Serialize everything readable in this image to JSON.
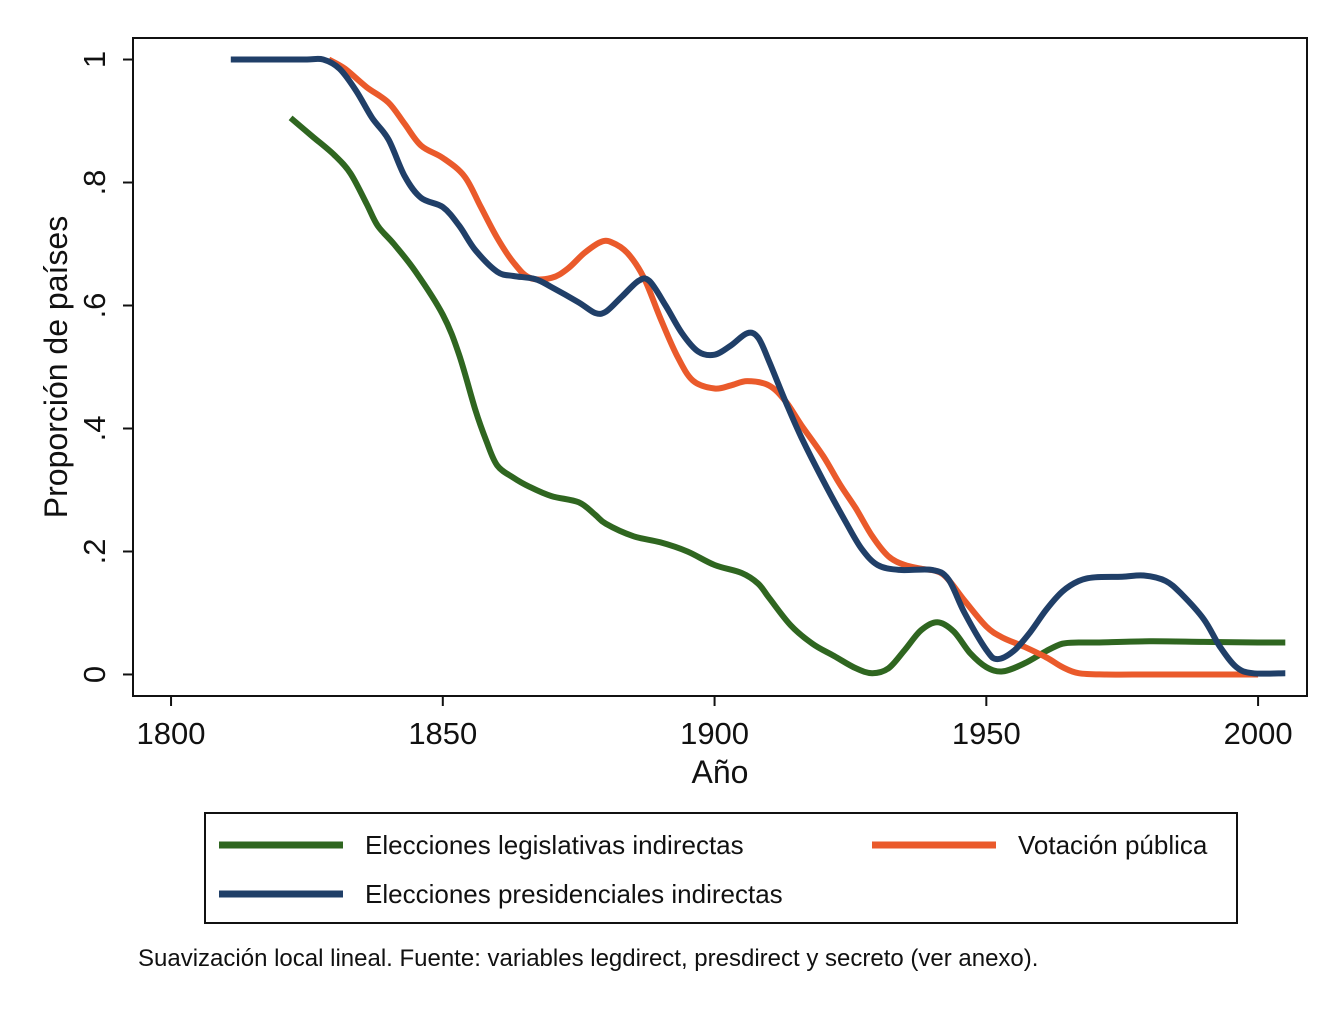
{
  "chart_data": {
    "type": "line",
    "title": "",
    "xlabel": "Año",
    "ylabel": "Proporción de países",
    "xlim": [
      1793,
      2009
    ],
    "ylim": [
      -0.035,
      1.035
    ],
    "x_ticks": [
      1800,
      1850,
      1900,
      1950,
      2000
    ],
    "x_tick_labels": [
      "1800",
      "1850",
      "1900",
      "1950",
      "2000"
    ],
    "y_ticks": [
      0,
      0.2,
      0.4,
      0.6,
      0.8,
      1
    ],
    "y_tick_labels": [
      "0",
      ".2",
      ".4",
      ".6",
      ".8",
      "1"
    ],
    "grid": false,
    "legend_position": "bottom",
    "note": "Suavización local lineal. Fuente: variables legdirect, presdirect y secreto (ver anexo).",
    "series": [
      {
        "name": "Elecciones legislativas indirectas",
        "color": "#2f6620",
        "points": [
          [
            1822,
            0.905
          ],
          [
            1826,
            0.875
          ],
          [
            1830,
            0.845
          ],
          [
            1833,
            0.815
          ],
          [
            1836,
            0.765
          ],
          [
            1838,
            0.73
          ],
          [
            1841,
            0.7
          ],
          [
            1845,
            0.655
          ],
          [
            1850,
            0.585
          ],
          [
            1853,
            0.52
          ],
          [
            1856,
            0.43
          ],
          [
            1858,
            0.38
          ],
          [
            1860,
            0.34
          ],
          [
            1863,
            0.32
          ],
          [
            1866,
            0.305
          ],
          [
            1870,
            0.29
          ],
          [
            1875,
            0.28
          ],
          [
            1878,
            0.26
          ],
          [
            1880,
            0.245
          ],
          [
            1885,
            0.225
          ],
          [
            1890,
            0.215
          ],
          [
            1895,
            0.2
          ],
          [
            1900,
            0.178
          ],
          [
            1905,
            0.165
          ],
          [
            1908,
            0.148
          ],
          [
            1910,
            0.125
          ],
          [
            1914,
            0.08
          ],
          [
            1918,
            0.05
          ],
          [
            1922,
            0.03
          ],
          [
            1926,
            0.01
          ],
          [
            1929,
            0.002
          ],
          [
            1932,
            0.01
          ],
          [
            1935,
            0.04
          ],
          [
            1938,
            0.072
          ],
          [
            1941,
            0.085
          ],
          [
            1944,
            0.07
          ],
          [
            1947,
            0.035
          ],
          [
            1950,
            0.012
          ],
          [
            1953,
            0.005
          ],
          [
            1957,
            0.018
          ],
          [
            1961,
            0.038
          ],
          [
            1964,
            0.05
          ],
          [
            1967,
            0.052
          ],
          [
            1970,
            0.052
          ],
          [
            1980,
            0.054
          ],
          [
            1990,
            0.053
          ],
          [
            2000,
            0.052
          ],
          [
            2005,
            0.052
          ]
        ]
      },
      {
        "name": "Elecciones presidenciales indirectas",
        "color": "#203f68",
        "points": [
          [
            1811,
            1
          ],
          [
            1820,
            1
          ],
          [
            1825,
            1
          ],
          [
            1828,
            1
          ],
          [
            1831,
            0.985
          ],
          [
            1834,
            0.95
          ],
          [
            1837,
            0.905
          ],
          [
            1840,
            0.87
          ],
          [
            1843,
            0.81
          ],
          [
            1846,
            0.775
          ],
          [
            1850,
            0.76
          ],
          [
            1853,
            0.73
          ],
          [
            1856,
            0.69
          ],
          [
            1860,
            0.655
          ],
          [
            1863,
            0.648
          ],
          [
            1867,
            0.643
          ],
          [
            1870,
            0.63
          ],
          [
            1875,
            0.605
          ],
          [
            1878,
            0.588
          ],
          [
            1880,
            0.59
          ],
          [
            1883,
            0.615
          ],
          [
            1886,
            0.64
          ],
          [
            1888,
            0.64
          ],
          [
            1891,
            0.6
          ],
          [
            1894,
            0.555
          ],
          [
            1897,
            0.525
          ],
          [
            1900,
            0.52
          ],
          [
            1903,
            0.535
          ],
          [
            1906,
            0.555
          ],
          [
            1908,
            0.548
          ],
          [
            1910,
            0.51
          ],
          [
            1913,
            0.445
          ],
          [
            1916,
            0.385
          ],
          [
            1920,
            0.315
          ],
          [
            1924,
            0.25
          ],
          [
            1927,
            0.205
          ],
          [
            1930,
            0.178
          ],
          [
            1934,
            0.17
          ],
          [
            1940,
            0.17
          ],
          [
            1943,
            0.155
          ],
          [
            1946,
            0.1
          ],
          [
            1950,
            0.04
          ],
          [
            1952,
            0.025
          ],
          [
            1955,
            0.038
          ],
          [
            1958,
            0.068
          ],
          [
            1961,
            0.105
          ],
          [
            1964,
            0.135
          ],
          [
            1967,
            0.152
          ],
          [
            1970,
            0.158
          ],
          [
            1975,
            0.159
          ],
          [
            1979,
            0.161
          ],
          [
            1983,
            0.152
          ],
          [
            1986,
            0.13
          ],
          [
            1990,
            0.09
          ],
          [
            1993,
            0.045
          ],
          [
            1996,
            0.012
          ],
          [
            1999,
            0.002
          ],
          [
            2005,
            0.002
          ]
        ]
      },
      {
        "name": "Votación pública",
        "color": "#ea5a2b",
        "points": [
          [
            1829,
            1
          ],
          [
            1832,
            0.985
          ],
          [
            1836,
            0.955
          ],
          [
            1840,
            0.93
          ],
          [
            1843,
            0.895
          ],
          [
            1846,
            0.86
          ],
          [
            1850,
            0.84
          ],
          [
            1854,
            0.81
          ],
          [
            1857,
            0.76
          ],
          [
            1860,
            0.71
          ],
          [
            1863,
            0.67
          ],
          [
            1866,
            0.645
          ],
          [
            1870,
            0.645
          ],
          [
            1873,
            0.66
          ],
          [
            1876,
            0.685
          ],
          [
            1879,
            0.703
          ],
          [
            1881,
            0.703
          ],
          [
            1884,
            0.685
          ],
          [
            1887,
            0.645
          ],
          [
            1890,
            0.58
          ],
          [
            1893,
            0.52
          ],
          [
            1896,
            0.478
          ],
          [
            1900,
            0.465
          ],
          [
            1903,
            0.47
          ],
          [
            1906,
            0.477
          ],
          [
            1910,
            0.47
          ],
          [
            1913,
            0.445
          ],
          [
            1916,
            0.405
          ],
          [
            1920,
            0.355
          ],
          [
            1923,
            0.31
          ],
          [
            1926,
            0.27
          ],
          [
            1929,
            0.225
          ],
          [
            1932,
            0.192
          ],
          [
            1935,
            0.178
          ],
          [
            1938,
            0.172
          ],
          [
            1942,
            0.163
          ],
          [
            1946,
            0.12
          ],
          [
            1950,
            0.078
          ],
          [
            1953,
            0.06
          ],
          [
            1957,
            0.045
          ],
          [
            1961,
            0.028
          ],
          [
            1964,
            0.012
          ],
          [
            1967,
            0.002
          ],
          [
            1972,
            0
          ],
          [
            1980,
            0
          ],
          [
            1990,
            0
          ],
          [
            2000,
            0
          ]
        ]
      }
    ]
  }
}
